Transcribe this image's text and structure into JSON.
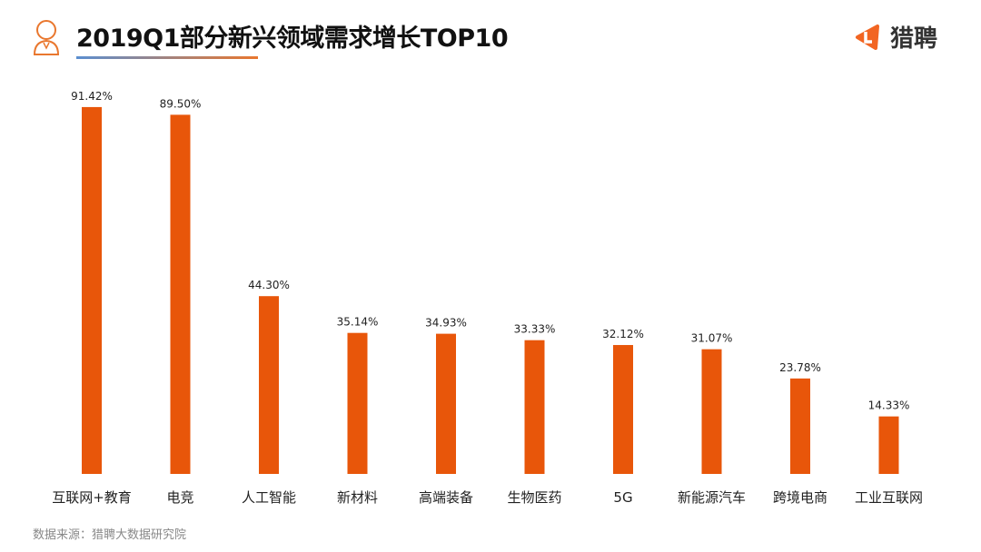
{
  "header": {
    "title": "2019Q1部分新兴领域需求增长TOP10",
    "logo_text": "猎聘"
  },
  "footer": {
    "source": "数据来源：猎聘大数据研究院"
  },
  "colors": {
    "bar": "#e8560a",
    "accent": "#e9772e"
  },
  "chart_data": {
    "type": "bar",
    "title": "2019Q1部分新兴领域需求增长TOP10",
    "categories": [
      "互联网+教育",
      "电竞",
      "人工智能",
      "新材料",
      "高端装备",
      "生物医药",
      "5G",
      "新能源汽车",
      "跨境电商",
      "工业互联网"
    ],
    "values": [
      91.42,
      89.5,
      44.3,
      35.14,
      34.93,
      33.33,
      32.12,
      31.07,
      23.78,
      14.33
    ],
    "labels": [
      "91.42%",
      "89.50%",
      "44.30%",
      "35.14%",
      "34.93%",
      "33.33%",
      "32.12%",
      "31.07%",
      "23.78%",
      "14.33%"
    ],
    "ylim": [
      0,
      100
    ],
    "xlabel": "",
    "ylabel": "",
    "grid": false
  }
}
